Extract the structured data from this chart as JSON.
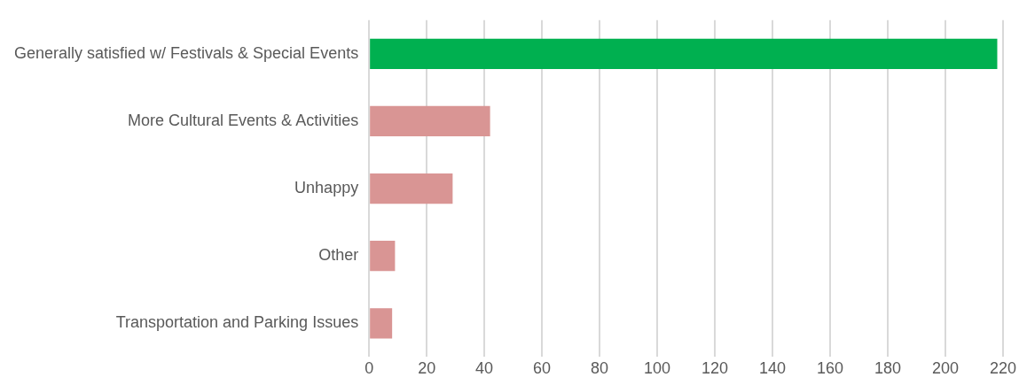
{
  "chart_data": {
    "type": "bar",
    "orientation": "horizontal",
    "categories": [
      "Generally satisfied w/ Festivals & Special Events",
      "More Cultural Events & Activities",
      "Unhappy",
      "Other",
      "Transportation and Parking Issues"
    ],
    "values": [
      218,
      42,
      29,
      9,
      8
    ],
    "colors": [
      "#00b050",
      "#d99594",
      "#d99594",
      "#d99594",
      "#d99594"
    ],
    "xlim": [
      0,
      220
    ],
    "xticks": [
      0,
      20,
      40,
      60,
      80,
      100,
      120,
      140,
      160,
      180,
      200,
      220
    ],
    "grid": "x"
  }
}
